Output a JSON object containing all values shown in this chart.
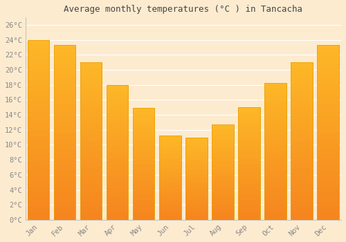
{
  "title": "Average monthly temperatures (°C ) in Tancacha",
  "months": [
    "Jan",
    "Feb",
    "Mar",
    "Apr",
    "May",
    "Jun",
    "Jul",
    "Aug",
    "Sep",
    "Oct",
    "Nov",
    "Dec"
  ],
  "values": [
    24.0,
    23.3,
    21.0,
    18.0,
    14.9,
    11.2,
    11.0,
    12.7,
    15.0,
    18.3,
    21.0,
    23.3
  ],
  "bar_color_top": "#FDB827",
  "bar_color_bottom": "#F5851E",
  "bar_edge_color": "#E8A000",
  "background_color": "#FDEBD0",
  "grid_color": "#FFFFFF",
  "tick_label_color": "#888888",
  "title_color": "#444444",
  "ylim": [
    0,
    27
  ],
  "yticks": [
    0,
    2,
    4,
    6,
    8,
    10,
    12,
    14,
    16,
    18,
    20,
    22,
    24,
    26
  ],
  "ytick_labels": [
    "0°C",
    "2°C",
    "4°C",
    "6°C",
    "8°C",
    "10°C",
    "12°C",
    "14°C",
    "16°C",
    "18°C",
    "20°C",
    "22°C",
    "24°C",
    "26°C"
  ]
}
